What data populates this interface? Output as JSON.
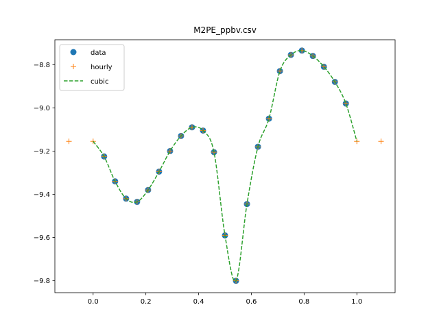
{
  "chart_data": {
    "type": "line",
    "title": "M2PE_ppbv.csv",
    "xlabel": "",
    "ylabel": "",
    "xlim": [
      -0.145,
      1.145
    ],
    "ylim": [
      -9.855,
      -8.685
    ],
    "xticks": [
      0.0,
      0.2,
      0.4,
      0.6,
      0.8,
      1.0
    ],
    "xtick_labels": [
      "0.0",
      "0.2",
      "0.4",
      "0.6",
      "0.8",
      "1.0"
    ],
    "yticks": [
      -9.8,
      -9.6,
      -9.4,
      -9.2,
      -9.0,
      -8.8
    ],
    "ytick_labels": [
      "−9.8",
      "−9.6",
      "−9.4",
      "−9.2",
      "−9.0",
      "−8.8"
    ],
    "grid": false,
    "legend_position": "top-left",
    "series": [
      {
        "name": "data",
        "style": "markers",
        "marker": "circle",
        "color": "#1f77b4",
        "x": [
          0.0417,
          0.0833,
          0.125,
          0.1667,
          0.2083,
          0.25,
          0.2917,
          0.3333,
          0.375,
          0.4167,
          0.4583,
          0.5,
          0.5417,
          0.5833,
          0.625,
          0.6667,
          0.7083,
          0.75,
          0.7917,
          0.8333,
          0.875,
          0.9167,
          0.9583
        ],
        "y": [
          -9.225,
          -9.34,
          -9.42,
          -9.435,
          -9.38,
          -9.295,
          -9.2,
          -9.13,
          -9.09,
          -9.105,
          -9.205,
          -9.59,
          -9.8,
          -9.445,
          -9.18,
          -9.05,
          -8.83,
          -8.755,
          -8.735,
          -8.76,
          -8.81,
          -8.88,
          -8.98
        ]
      },
      {
        "name": "hourly",
        "style": "markers",
        "marker": "plus",
        "color": "#ff7f0e",
        "x": [
          -0.0917,
          0.0,
          0.0417,
          0.0833,
          0.125,
          0.1667,
          0.2083,
          0.25,
          0.2917,
          0.3333,
          0.375,
          0.4167,
          0.4583,
          0.5,
          0.5417,
          0.5833,
          0.625,
          0.6667,
          0.7083,
          0.75,
          0.7917,
          0.8333,
          0.875,
          0.9167,
          0.9583,
          1.0,
          1.0917
        ],
        "y": [
          -9.155,
          -9.155,
          -9.225,
          -9.34,
          -9.42,
          -9.435,
          -9.38,
          -9.295,
          -9.2,
          -9.13,
          -9.09,
          -9.105,
          -9.205,
          -9.59,
          -9.8,
          -9.445,
          -9.18,
          -9.05,
          -8.83,
          -8.755,
          -8.735,
          -8.76,
          -8.81,
          -8.88,
          -8.98,
          -9.155,
          -9.155
        ]
      },
      {
        "name": "cubic",
        "style": "dashed-line",
        "color": "#2ca02c",
        "x": [
          0.0,
          0.0417,
          0.0833,
          0.125,
          0.1667,
          0.2083,
          0.25,
          0.2917,
          0.3333,
          0.375,
          0.4167,
          0.4583,
          0.5,
          0.5417,
          0.5833,
          0.625,
          0.6667,
          0.7083,
          0.75,
          0.7917,
          0.8333,
          0.875,
          0.9167,
          0.9583,
          1.0
        ],
        "y": [
          -9.155,
          -9.225,
          -9.34,
          -9.42,
          -9.435,
          -9.38,
          -9.295,
          -9.2,
          -9.13,
          -9.09,
          -9.105,
          -9.205,
          -9.59,
          -9.8,
          -9.445,
          -9.18,
          -9.05,
          -8.83,
          -8.755,
          -8.735,
          -8.76,
          -8.81,
          -8.88,
          -8.98,
          -9.155
        ]
      }
    ]
  }
}
